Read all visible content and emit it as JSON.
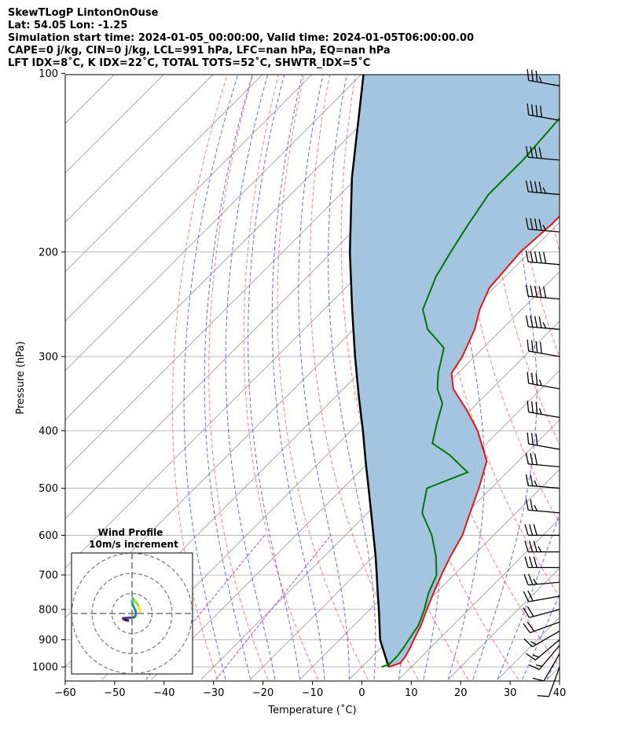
{
  "header": {
    "line1": "SkewTLogP LintonOnOuse",
    "line2": "Lat: 54.05   Lon: -1.25",
    "line3": "Simulation start time: 2024-01-05_00:00:00, Valid time: 2024-01-05T06:00:00.00",
    "line4": "CAPE=0 j/kg, CIN=0 j/kg, LCL=991 hPa, LFC=nan hPa, EQ=nan hPa",
    "line5": "LFT IDX=8˚C, K IDX=22˚C, TOTAL TOTS=52˚C, SHWTR_IDX=5˚C"
  },
  "chart_data": {
    "type": "line",
    "title": "SkewTLogP LintonOnOuse",
    "xlabel": "Temperature (˚C)",
    "ylabel": "Pressure (hPa)",
    "xlim": [
      -60,
      40
    ],
    "ylim": [
      1050,
      100
    ],
    "y_scale": "log",
    "x_ticks": [
      "−60",
      "−50",
      "−40",
      "−30",
      "−20",
      "−10",
      "0",
      "10",
      "20",
      "30",
      "40"
    ],
    "y_ticks": [
      "100",
      "200",
      "300",
      "400",
      "500",
      "600",
      "700",
      "800",
      "900",
      "1000"
    ],
    "grid": true,
    "colors": {
      "temperature": "#ee1111",
      "dewpoint": "#007700",
      "parcel": "#000000",
      "cape_fill": "#a3c5df",
      "isotherms": "#a0a0a0",
      "dry_adiabats": "#ff5555",
      "moist_adiabats": "#4444ff",
      "mixing_ratio": "#9933cc"
    },
    "series": [
      {
        "name": "",
        "key": "temperature",
        "p": [
          1000,
          985,
          960,
          925,
          900,
          850,
          800,
          750,
          700,
          650,
          600,
          550,
          500,
          450,
          400,
          370,
          340,
          320,
          300,
          270,
          250,
          230,
          200,
          180,
          160,
          140,
          120,
          100
        ],
        "t": [
          5.5,
          7.0,
          6.7,
          5.8,
          5.0,
          3.5,
          1.5,
          -0.5,
          -2.5,
          -4.5,
          -6.3,
          -9.3,
          -12.5,
          -16.4,
          -24.4,
          -30.6,
          -37.8,
          -41.3,
          -42.5,
          -45.5,
          -48.5,
          -50.9,
          -51.9,
          -51.2,
          -51.2,
          -50.5,
          -50.2,
          -49.8
        ]
      },
      {
        "name": "",
        "key": "dewpoint",
        "p": [
          1000,
          990,
          960,
          925,
          900,
          850,
          800,
          750,
          700,
          650,
          600,
          550,
          500,
          470,
          440,
          420,
          390,
          360,
          340,
          320,
          290,
          270,
          250,
          220,
          200,
          180,
          160,
          140,
          120,
          100
        ],
        "t": [
          4.0,
          5.0,
          5.0,
          4.5,
          4.0,
          3.0,
          1.0,
          -1.5,
          -3.5,
          -7.5,
          -12.5,
          -19.0,
          -23.0,
          -18.0,
          -25.0,
          -31.0,
          -34.0,
          -37.0,
          -41.0,
          -44.0,
          -48.0,
          -55.0,
          -60.0,
          -64.0,
          -66.0,
          -68.0,
          -70.0,
          -70.0,
          -71.0,
          -72.0
        ]
      },
      {
        "name": "",
        "key": "parcel",
        "p": [
          1000,
          991,
          950,
          900,
          850,
          800,
          750,
          700,
          650,
          600,
          550,
          500,
          450,
          400,
          350,
          300,
          250,
          200,
          150,
          100
        ],
        "t": [
          5.5,
          4.8,
          1.9,
          -1.8,
          -4.9,
          -8.2,
          -11.8,
          -15.6,
          -19.7,
          -24.3,
          -29.3,
          -34.8,
          -40.9,
          -47.6,
          -55.4,
          -64.2,
          -74.3,
          -86.4,
          -101.0,
          -119.8
        ]
      }
    ],
    "wind_barbs": {
      "p": [
        1000,
        950,
        920,
        900,
        870,
        840,
        800,
        760,
        720,
        680,
        640,
        600,
        550,
        500,
        460,
        430,
        380,
        340,
        300,
        270,
        240,
        210,
        185,
        160,
        140,
        120,
        105
      ],
      "speed_kt": [
        10,
        10,
        15,
        15,
        15,
        20,
        20,
        20,
        25,
        30,
        35,
        30,
        25,
        25,
        30,
        30,
        35,
        35,
        40,
        45,
        50,
        50,
        45,
        45,
        40,
        40,
        35
      ],
      "direction_deg": [
        200,
        210,
        220,
        230,
        240,
        250,
        255,
        260,
        265,
        270,
        270,
        270,
        275,
        275,
        275,
        280,
        280,
        280,
        280,
        275,
        275,
        275,
        275,
        275,
        275,
        280,
        280
      ]
    },
    "hodograph": {
      "title": "Wind Profile",
      "subtitle": "10m/s increment",
      "rings_ms": [
        10,
        20,
        30
      ],
      "u": [
        -2.0,
        -3.5,
        -4.5,
        -3.5,
        -2.0,
        0.5,
        1.5,
        2.0,
        1.5,
        0.5,
        0.0,
        0.5,
        1.0,
        2.5,
        3.5,
        4.0
      ],
      "v": [
        -3.5,
        -3.2,
        -2.5,
        -2.3,
        -2.2,
        -2.0,
        -1.5,
        0.0,
        2.0,
        4.0,
        6.0,
        7.5,
        6.5,
        5.0,
        3.0,
        1.0
      ]
    }
  }
}
